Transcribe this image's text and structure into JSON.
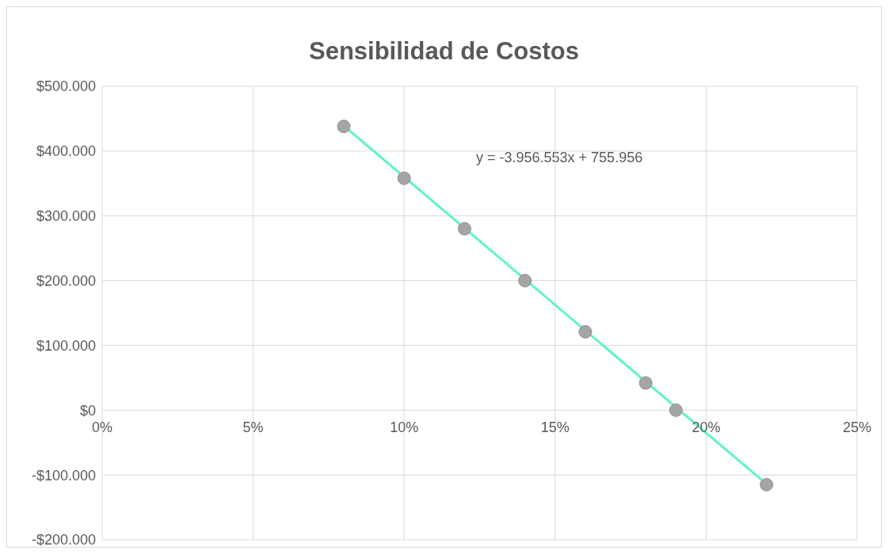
{
  "chart_data": {
    "type": "scatter",
    "title": "Sensibilidad de Costos",
    "x": [
      0.08,
      0.1,
      0.12,
      0.14,
      0.16,
      0.18,
      0.19,
      0.22
    ],
    "series": [
      {
        "color": "#a5a5a5",
        "values": [
          438000,
          358000,
          280000,
          200000,
          121000,
          42000,
          0,
          -115000
        ],
        "marker": "circle"
      },
      {
        "type": "line",
        "color": "#5ef5c8",
        "x": [
          0.08,
          0.22
        ],
        "values": [
          439000,
          -114000
        ],
        "marker": "none"
      }
    ],
    "annotations": [
      "y = -3.956.553x + 755.956"
    ],
    "xlim": [
      0,
      0.25
    ],
    "xticks": [
      {
        "value": 0,
        "label": "0%"
      },
      {
        "value": 0.05,
        "label": "5%"
      },
      {
        "value": 0.1,
        "label": "10%"
      },
      {
        "value": 0.15,
        "label": "15%"
      },
      {
        "value": 0.2,
        "label": "20%"
      },
      {
        "value": 0.25,
        "label": "25%"
      }
    ],
    "ylim": [
      -200000,
      500000
    ],
    "yticks": [
      {
        "value": -200000,
        "label": "-$200.000"
      },
      {
        "value": -100000,
        "label": "-$100.000"
      },
      {
        "value": 0,
        "label": "$0"
      },
      {
        "value": 100000,
        "label": "$100.000"
      },
      {
        "value": 200000,
        "label": "$200.000"
      },
      {
        "value": 300000,
        "label": "$300.000"
      },
      {
        "value": 400000,
        "label": "$400.000"
      },
      {
        "value": 500000,
        "label": "$500.000"
      }
    ],
    "grid": true,
    "legend": false
  }
}
